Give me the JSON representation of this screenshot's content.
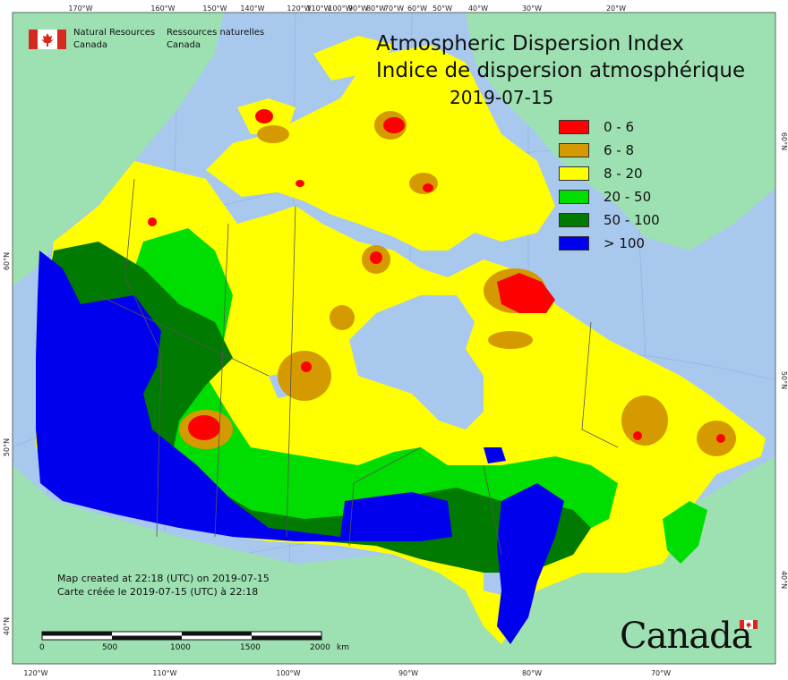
{
  "agency": {
    "en_line1": "Natural Resources",
    "en_line2": "Canada",
    "fr_line1": "Ressources naturelles",
    "fr_line2": "Canada"
  },
  "title": {
    "en": "Atmospheric Dispersion Index",
    "fr": "Indice de dispersion atmosphérique",
    "date": "2019-07-15"
  },
  "legend": [
    {
      "label": "0 - 6",
      "color": "#ff0000"
    },
    {
      "label": "6 - 8",
      "color": "#d59a00"
    },
    {
      "label": "8 - 20",
      "color": "#ffff00"
    },
    {
      "label": "20 - 50",
      "color": "#00dd00"
    },
    {
      "label": "50 - 100",
      "color": "#007a00"
    },
    {
      "label": "> 100",
      "color": "#0000ee"
    }
  ],
  "credits": {
    "en": "Map created at 22:18 (UTC) on 2019-07-15",
    "fr": "Carte créée le 2019-07-15 (UTC) à 22:18"
  },
  "scale": {
    "labels": [
      "0",
      "500",
      "1000",
      "1500",
      "2000"
    ],
    "unit": "km"
  },
  "top_ticks": [
    "170°W",
    "160°W",
    "150°W",
    "140°W",
    "120°W",
    "110°W",
    "100°W",
    "90°W",
    "80°W",
    "70°W",
    "60°W",
    "50°W",
    "40°W",
    "30°W",
    "20°W"
  ],
  "bottom_ticks": [
    "120°W",
    "110°W",
    "100°W",
    "90°W",
    "80°W",
    "70°W"
  ],
  "left_ticks": [
    "60°N",
    "50°N",
    "40°N"
  ],
  "right_ticks": [
    "60°N",
    "50°N",
    "40°N"
  ],
  "wordmark": "Canada",
  "colors": {
    "ocean": "#a8c8ee",
    "land": "#9de0b2",
    "border": "#555555"
  }
}
